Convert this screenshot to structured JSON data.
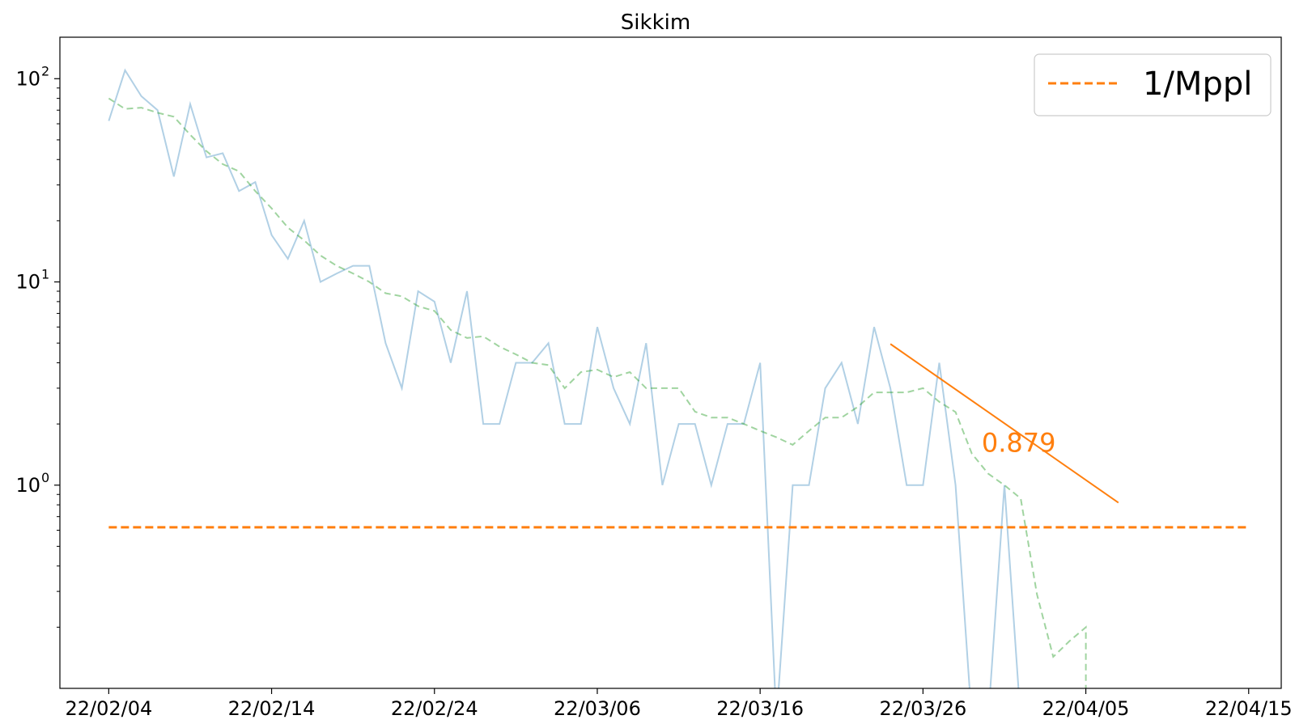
{
  "chart_data": {
    "type": "line",
    "title": "Sikkim",
    "xlabel": "",
    "ylabel": "",
    "y_scale": "log",
    "xlim": [
      "2022-02-01",
      "2022-04-17"
    ],
    "ylim": [
      0.1,
      160
    ],
    "x_ticks": [
      {
        "date": "2022-02-04",
        "label": "22/02/04"
      },
      {
        "date": "2022-02-14",
        "label": "22/02/14"
      },
      {
        "date": "2022-02-24",
        "label": "22/02/24"
      },
      {
        "date": "2022-03-06",
        "label": "22/03/06"
      },
      {
        "date": "2022-03-16",
        "label": "22/03/16"
      },
      {
        "date": "2022-03-26",
        "label": "22/03/26"
      },
      {
        "date": "2022-04-05",
        "label": "22/04/05"
      },
      {
        "date": "2022-04-15",
        "label": "22/04/15"
      }
    ],
    "y_ticks": [
      {
        "value": 1,
        "base": "10",
        "exp": "0"
      },
      {
        "value": 10,
        "base": "10",
        "exp": "1"
      },
      {
        "value": 100,
        "base": "10",
        "exp": "2"
      }
    ],
    "grid": false,
    "legend": {
      "placement": "top-right",
      "entries": [
        {
          "label": "1/Mppl",
          "color": "#ff7f0e",
          "style": "dashed"
        }
      ]
    },
    "colors": {
      "daily": "#1f77b4",
      "average": "#2ca02c",
      "accent": "#ff7f0e"
    },
    "series": [
      {
        "values": [
          [
            "2022-02-04",
            62
          ],
          [
            "2022-02-05",
            110
          ],
          [
            "2022-02-06",
            82
          ],
          [
            "2022-02-07",
            70
          ],
          [
            "2022-02-08",
            33
          ],
          [
            "2022-02-09",
            75
          ],
          [
            "2022-02-10",
            41
          ],
          [
            "2022-02-11",
            43
          ],
          [
            "2022-02-12",
            28
          ],
          [
            "2022-02-13",
            31
          ],
          [
            "2022-02-14",
            17
          ],
          [
            "2022-02-15",
            13
          ],
          [
            "2022-02-16",
            20
          ],
          [
            "2022-02-17",
            10
          ],
          [
            "2022-02-18",
            11
          ],
          [
            "2022-02-19",
            12
          ],
          [
            "2022-02-20",
            12
          ],
          [
            "2022-02-21",
            5
          ],
          [
            "2022-02-22",
            3
          ],
          [
            "2022-02-23",
            9
          ],
          [
            "2022-02-24",
            8
          ],
          [
            "2022-02-25",
            4
          ],
          [
            "2022-02-26",
            9
          ],
          [
            "2022-02-27",
            2
          ],
          [
            "2022-02-28",
            2
          ],
          [
            "2022-03-01",
            4
          ],
          [
            "2022-03-02",
            4
          ],
          [
            "2022-03-03",
            5
          ],
          [
            "2022-03-04",
            2
          ],
          [
            "2022-03-05",
            2
          ],
          [
            "2022-03-06",
            6
          ],
          [
            "2022-03-07",
            3
          ],
          [
            "2022-03-08",
            2
          ],
          [
            "2022-03-09",
            5
          ],
          [
            "2022-03-10",
            1
          ],
          [
            "2022-03-11",
            2
          ],
          [
            "2022-03-12",
            2
          ],
          [
            "2022-03-13",
            1
          ],
          [
            "2022-03-14",
            2
          ],
          [
            "2022-03-15",
            2
          ],
          [
            "2022-03-16",
            4
          ],
          [
            "2022-03-17",
            0
          ],
          [
            "2022-03-18",
            1
          ],
          [
            "2022-03-19",
            1
          ],
          [
            "2022-03-20",
            3
          ],
          [
            "2022-03-21",
            4
          ],
          [
            "2022-03-22",
            2
          ],
          [
            "2022-03-23",
            6
          ],
          [
            "2022-03-24",
            3
          ],
          [
            "2022-03-25",
            1
          ],
          [
            "2022-03-26",
            1
          ],
          [
            "2022-03-27",
            4
          ],
          [
            "2022-03-28",
            1
          ],
          [
            "2022-03-29",
            0
          ],
          [
            "2022-03-30",
            0
          ],
          [
            "2022-03-31",
            1
          ],
          [
            "2022-04-01",
            0
          ]
        ]
      },
      {
        "values": [
          [
            "2022-02-04",
            80
          ],
          [
            "2022-02-05",
            71
          ],
          [
            "2022-02-06",
            72
          ],
          [
            "2022-02-07",
            68
          ],
          [
            "2022-02-08",
            65
          ],
          [
            "2022-02-09",
            53
          ],
          [
            "2022-02-10",
            44
          ],
          [
            "2022-02-11",
            38
          ],
          [
            "2022-02-12",
            35
          ],
          [
            "2022-02-13",
            28
          ],
          [
            "2022-02-14",
            23
          ],
          [
            "2022-02-15",
            18.5
          ],
          [
            "2022-02-16",
            16
          ],
          [
            "2022-02-17",
            13.5
          ],
          [
            "2022-02-18",
            12
          ],
          [
            "2022-02-19",
            11
          ],
          [
            "2022-02-20",
            10
          ],
          [
            "2022-02-21",
            8.8
          ],
          [
            "2022-02-22",
            8.5
          ],
          [
            "2022-02-23",
            7.6
          ],
          [
            "2022-02-24",
            7.2
          ],
          [
            "2022-02-25",
            5.8
          ],
          [
            "2022-02-26",
            5.3
          ],
          [
            "2022-02-27",
            5.4
          ],
          [
            "2022-02-28",
            4.8
          ],
          [
            "2022-03-01",
            4.4
          ],
          [
            "2022-03-02",
            4.0
          ],
          [
            "2022-03-03",
            3.9
          ],
          [
            "2022-03-04",
            3.0
          ],
          [
            "2022-03-05",
            3.6
          ],
          [
            "2022-03-06",
            3.7
          ],
          [
            "2022-03-07",
            3.4
          ],
          [
            "2022-03-08",
            3.6
          ],
          [
            "2022-03-09",
            3.0
          ],
          [
            "2022-03-10",
            3.0
          ],
          [
            "2022-03-11",
            3.0
          ],
          [
            "2022-03-12",
            2.3
          ],
          [
            "2022-03-13",
            2.15
          ],
          [
            "2022-03-14",
            2.15
          ],
          [
            "2022-03-15",
            2.0
          ],
          [
            "2022-03-16",
            1.85
          ],
          [
            "2022-03-17",
            1.72
          ],
          [
            "2022-03-18",
            1.58
          ],
          [
            "2022-03-19",
            1.85
          ],
          [
            "2022-03-20",
            2.15
          ],
          [
            "2022-03-21",
            2.15
          ],
          [
            "2022-03-22",
            2.43
          ],
          [
            "2022-03-23",
            2.86
          ],
          [
            "2022-03-24",
            2.86
          ],
          [
            "2022-03-25",
            2.86
          ],
          [
            "2022-03-26",
            3.0
          ],
          [
            "2022-03-27",
            2.57
          ],
          [
            "2022-03-28",
            2.29
          ],
          [
            "2022-03-29",
            1.43
          ],
          [
            "2022-03-30",
            1.14
          ],
          [
            "2022-03-31",
            1.0
          ],
          [
            "2022-04-01",
            0.86
          ],
          [
            "2022-04-02",
            0.29
          ],
          [
            "2022-04-03",
            0.143
          ],
          [
            "2022-04-04",
            0.171
          ],
          [
            "2022-04-05",
            0.2
          ],
          [
            "2022-04-05",
            0.1
          ]
        ]
      }
    ],
    "reference_line": {
      "y": 0.62,
      "from": "2022-02-04",
      "to": "2022-04-15",
      "label": "1/Mppl"
    },
    "trend_line": {
      "points": [
        [
          "2022-03-24",
          4.95
        ],
        [
          "2022-04-07",
          0.82
        ]
      ]
    },
    "annotations": [
      {
        "text": "0.879",
        "date": "2022-03-30",
        "y": 1.6
      }
    ]
  }
}
